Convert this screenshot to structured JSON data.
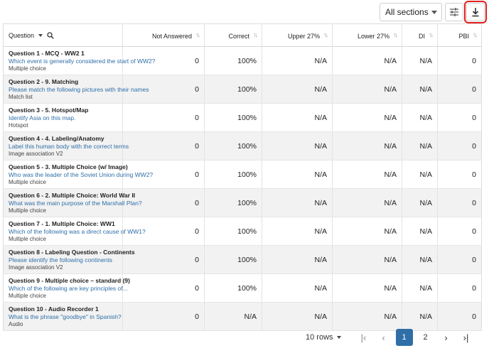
{
  "toolbar": {
    "section_select": "All sections",
    "filter_icon": "sliders-icon",
    "download_icon": "download-icon",
    "highlight_color": "#e0201f"
  },
  "columns": {
    "question": "Question",
    "not_answered": "Not Answered",
    "correct": "Correct",
    "upper": "Upper 27%",
    "lower": "Lower 27%",
    "di": "DI",
    "pbi": "PBI"
  },
  "rows": [
    {
      "title": "Question 1 - MCQ - WW2 1",
      "prompt": "Which event is generally considered the start of WW2?",
      "kind": "Multiple choice",
      "not_answered": "0",
      "correct": "100%",
      "upper": "N/A",
      "lower": "N/A",
      "di": "N/A",
      "pbi": "0"
    },
    {
      "title": "Question 2 - 9. Matching",
      "prompt": "Please match the following pictures with their names",
      "kind": "Match list",
      "not_answered": "0",
      "correct": "100%",
      "upper": "N/A",
      "lower": "N/A",
      "di": "N/A",
      "pbi": "0"
    },
    {
      "title": "Question 3 - 5. Hotspot/Map",
      "prompt": "Identify Asia on this map.",
      "kind": "Hotspot",
      "not_answered": "0",
      "correct": "100%",
      "upper": "N/A",
      "lower": "N/A",
      "di": "N/A",
      "pbi": "0"
    },
    {
      "title": "Question 4 - 4. Labeling/Anatomy",
      "prompt": "Label this human body with the correct terms",
      "kind": "Image association V2",
      "not_answered": "0",
      "correct": "100%",
      "upper": "N/A",
      "lower": "N/A",
      "di": "N/A",
      "pbi": "0"
    },
    {
      "title": "Question 5 - 3. Multiple Choice (w/ Image)",
      "prompt": "Who was the leader of the Soviet Union during WW2?",
      "kind": "Multiple choice",
      "not_answered": "0",
      "correct": "100%",
      "upper": "N/A",
      "lower": "N/A",
      "di": "N/A",
      "pbi": "0"
    },
    {
      "title": "Question 6 - 2. Multiple Choice: World War II",
      "prompt": "What was the main purpose of the Marshall Plan?",
      "kind": "Multiple choice",
      "not_answered": "0",
      "correct": "100%",
      "upper": "N/A",
      "lower": "N/A",
      "di": "N/A",
      "pbi": "0"
    },
    {
      "title": "Question 7 - 1. Multiple Choice: WW1",
      "prompt": "Which of the following was a direct cause of WW1?",
      "kind": "Multiple choice",
      "not_answered": "0",
      "correct": "100%",
      "upper": "N/A",
      "lower": "N/A",
      "di": "N/A",
      "pbi": "0"
    },
    {
      "title": "Question 8 - Labeling Question - Continents",
      "prompt": "Please identify the following continents",
      "kind": "Image association V2",
      "not_answered": "0",
      "correct": "100%",
      "upper": "N/A",
      "lower": "N/A",
      "di": "N/A",
      "pbi": "0"
    },
    {
      "title": "Question 9 - Multiple choice – standard (9)",
      "prompt": "Which of the following are key principles of...",
      "kind": "Multiple choice",
      "not_answered": "0",
      "correct": "100%",
      "upper": "N/A",
      "lower": "N/A",
      "di": "N/A",
      "pbi": "0"
    },
    {
      "title": "Question 10 - Audio Recorder 1",
      "prompt": "What is the phrase \"goodbye\" in Spanish?",
      "kind": "Audio",
      "not_answered": "0",
      "correct": "N/A",
      "upper": "N/A",
      "lower": "N/A",
      "di": "N/A",
      "pbi": "0"
    }
  ],
  "pagination": {
    "rows_label": "10 rows",
    "pages": [
      "1",
      "2"
    ],
    "active_page": "1"
  }
}
